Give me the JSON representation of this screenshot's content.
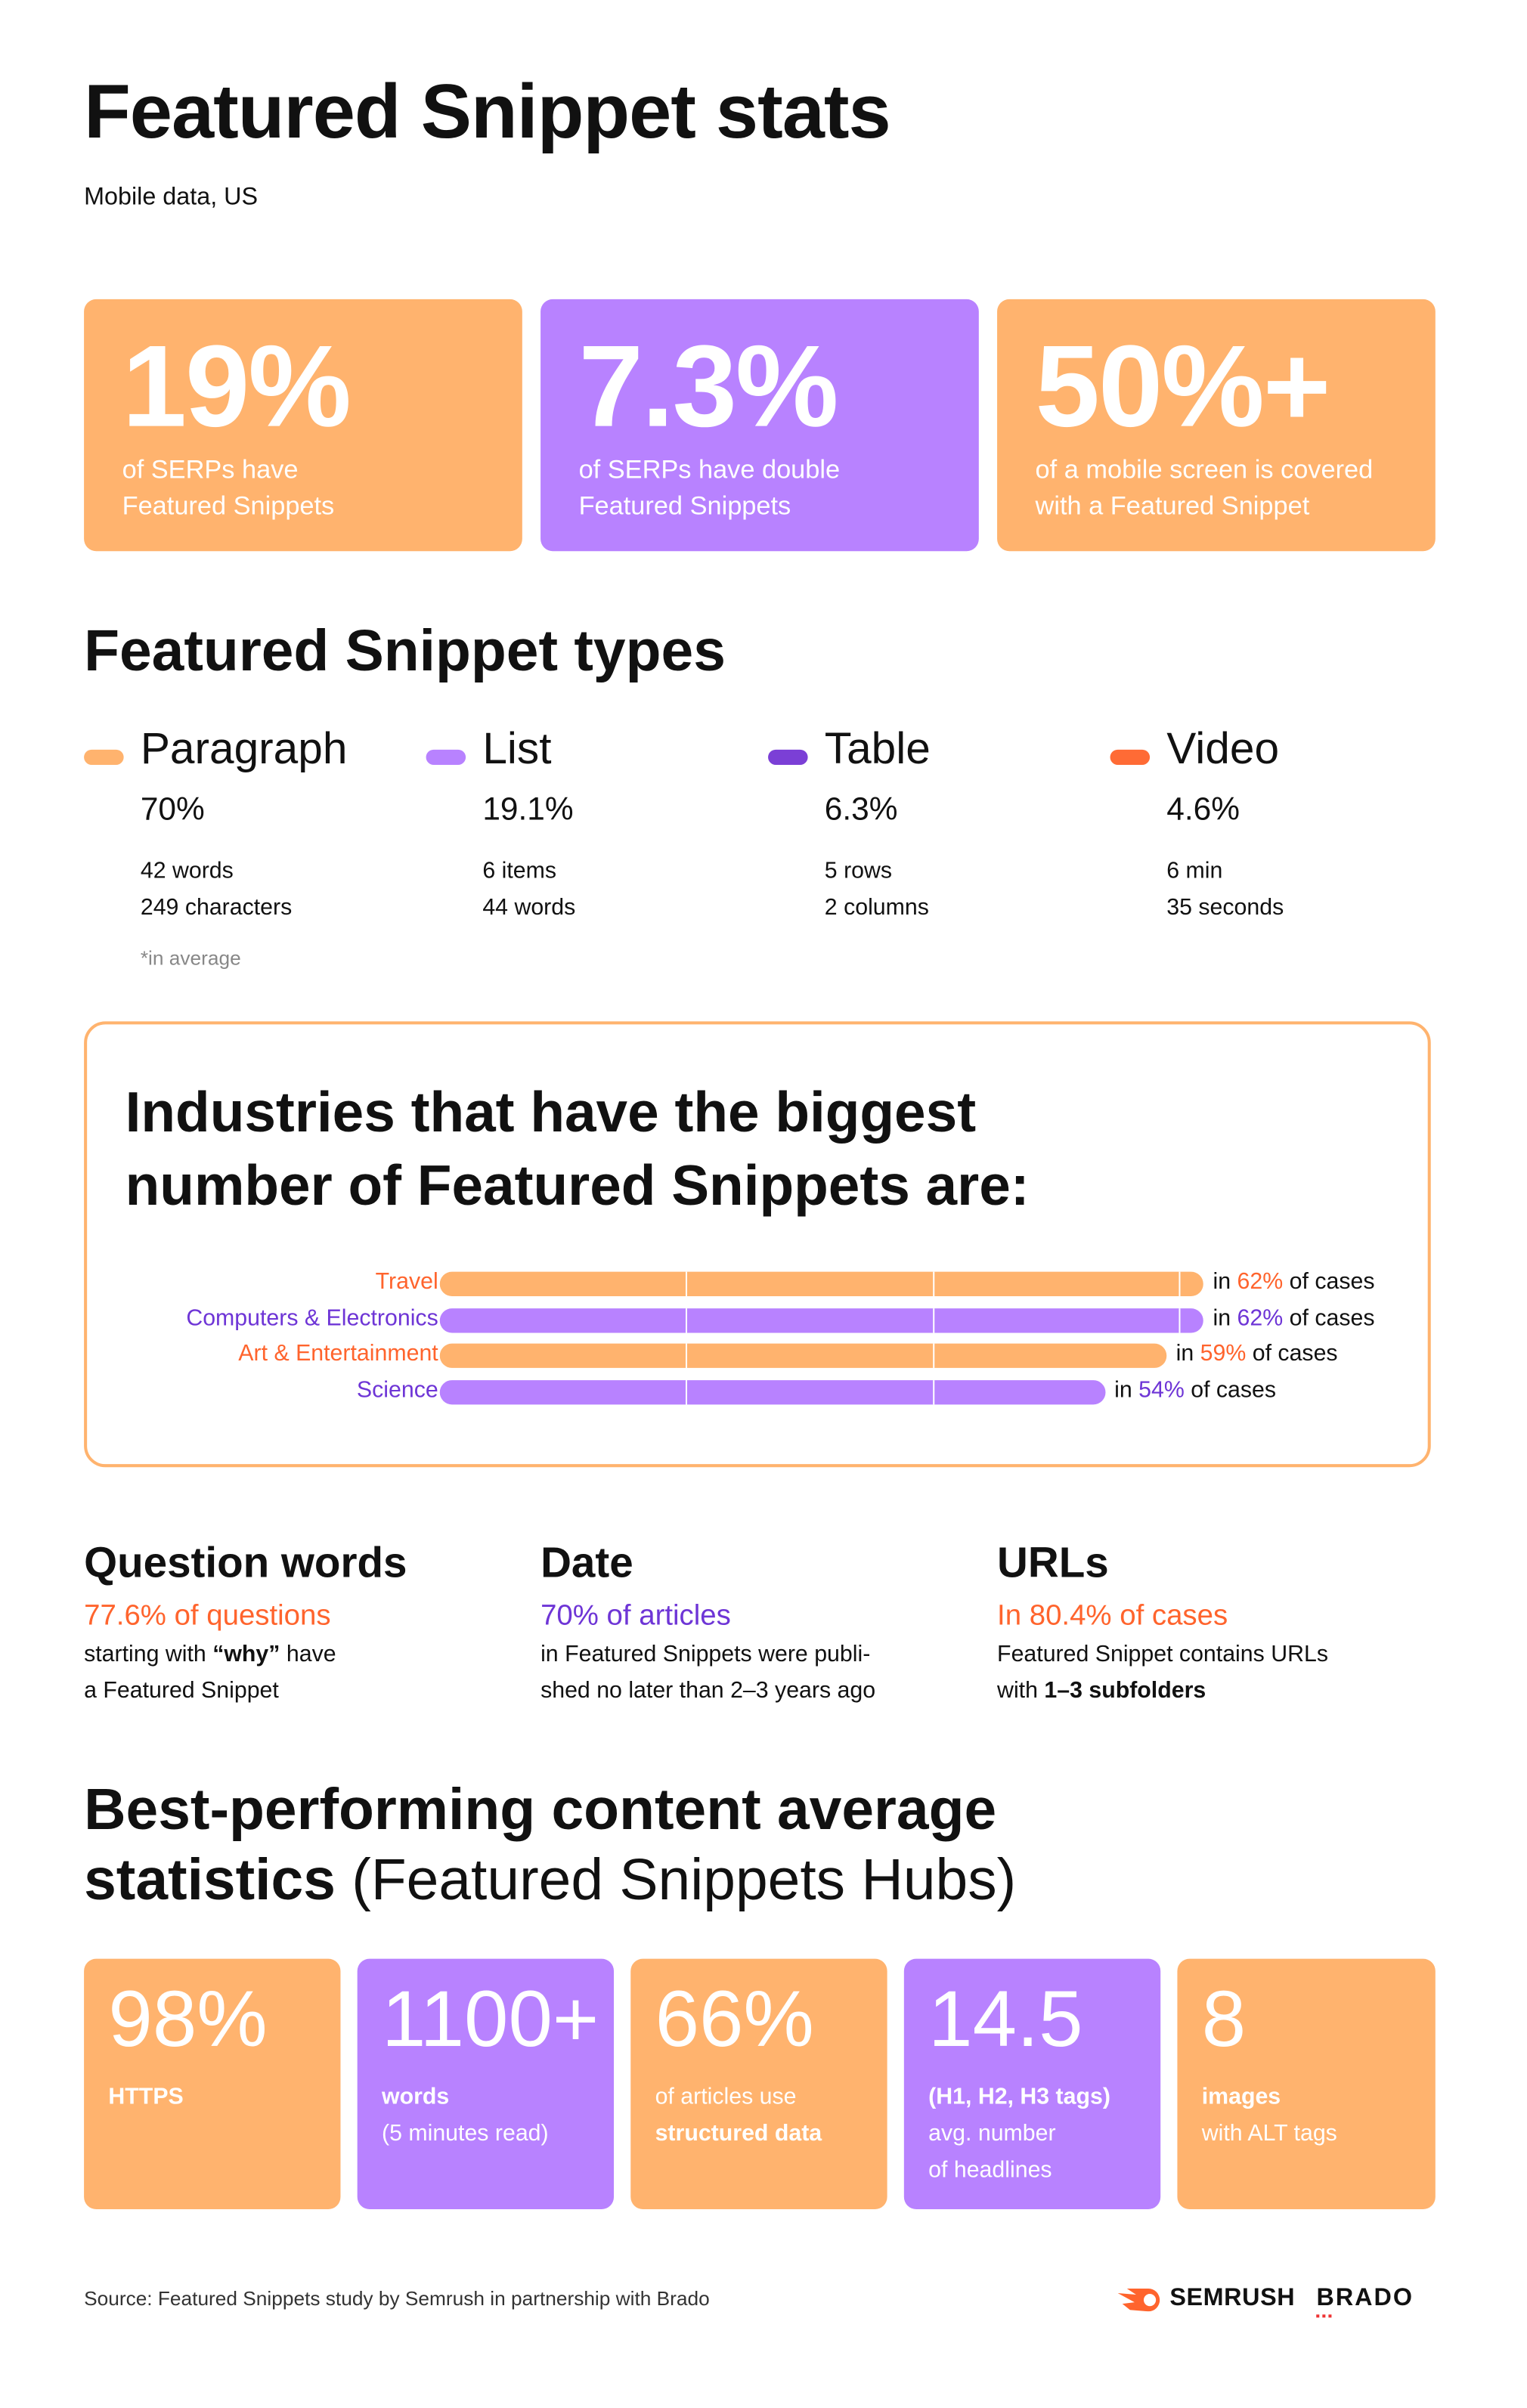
{
  "title": "Featured Snippet stats",
  "subtitle": "Mobile data, US",
  "colors": {
    "orange": "#FFB36E",
    "purple": "#B882FF",
    "dark_purple": "#7B3FD6",
    "red_orange": "#FF6B35",
    "orange_text": "#FF642D",
    "purple_text": "#6E35D6"
  },
  "top_cards": [
    {
      "value": "19%",
      "caption1": "of SERPs have",
      "caption2": "Featured Snippets"
    },
    {
      "value": "7.3%",
      "caption1": "of SERPs have double",
      "caption2": "Featured Snippets"
    },
    {
      "value": "50%+",
      "caption1": "of a mobile screen is covered",
      "caption2": "with a Featured Snippet"
    }
  ],
  "types_title": "Featured Snippet types",
  "types": [
    {
      "name": "Paragraph",
      "pct": "70%",
      "d1": "42 words",
      "d2": "249 characters"
    },
    {
      "name": "List",
      "pct": "19.1%",
      "d1": "6 items",
      "d2": "44 words"
    },
    {
      "name": "Table",
      "pct": "6.3%",
      "d1": "5 rows",
      "d2": "2 columns"
    },
    {
      "name": "Video",
      "pct": "4.6%",
      "d1": "6 min",
      "d2": "35 seconds"
    }
  ],
  "types_note": "*in average",
  "chart_data": {
    "type": "bar",
    "title": "Industries that have the biggest number of Featured Snippets are:",
    "categories": [
      "Travel",
      "Computers & Electronics",
      "Art & Entertainment",
      "Science"
    ],
    "values": [
      62,
      62,
      59,
      54
    ],
    "value_labels": [
      "62%",
      "62%",
      "59%",
      "54%"
    ],
    "prefix": "in",
    "suffix": "of cases",
    "gridlines": [
      20,
      40,
      60
    ],
    "orientation": "horizontal"
  },
  "facts": [
    {
      "heading": "Question words",
      "stat": "77.6% of questions",
      "d1_pre": "starting with ",
      "d1_bold": "“why”",
      "d1_post": " have",
      "d2": "a Featured Snippet"
    },
    {
      "heading": "Date",
      "stat": "70% of articles",
      "d1": "in Featured Snippets were publi-",
      "d2": "shed no later than 2–3 years ago"
    },
    {
      "heading": "URLs",
      "stat": "In 80.4% of cases",
      "d1": "Featured Snippet contains URLs",
      "d2_pre": "with ",
      "d2_bold": "1–3 subfolders"
    }
  ],
  "best_title_bold1": "Best-performing content average",
  "best_title_bold2": "statistics",
  "best_title_light": " (Featured Snippets Hubs)",
  "best_cards": [
    {
      "value": "98%",
      "l1": "HTTPS",
      "l2": "",
      "l3": ""
    },
    {
      "value": "1100+",
      "l1": "words",
      "l2": "(5 minutes read)",
      "l3": ""
    },
    {
      "value": "66%",
      "l1": "of articles use",
      "l2": "structured data",
      "l3": ""
    },
    {
      "value": "14.5",
      "l1": "(H1, H2, H3 tags)",
      "l2": "avg. number",
      "l3": "of headlines"
    },
    {
      "value": "8",
      "l1": "images",
      "l2": "with ALT tags",
      "l3": ""
    }
  ],
  "source": "Source: Featured Snippets study by Semrush in partnership with Brado",
  "logos": [
    "SEMRUSH",
    "BRADO"
  ]
}
